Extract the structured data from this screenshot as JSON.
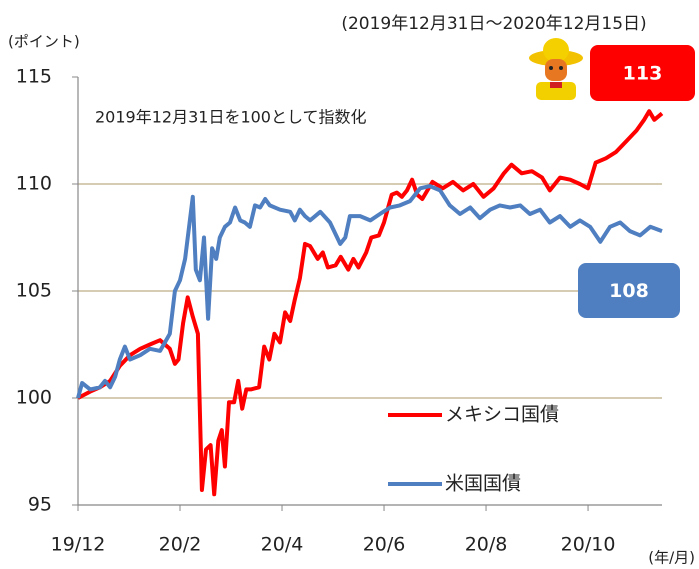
{
  "chart_data": {
    "type": "line",
    "subtitle": "(2019年12月31日～2020年12月15日)",
    "y_label": "(ポイント)",
    "x_label": "(年/月)",
    "annotation": "2019年12月31日を100として指数化",
    "xlim": [
      0,
      11.45
    ],
    "xticks": [
      {
        "value": 0,
        "label": "19/12"
      },
      {
        "value": 2,
        "label": "20/2"
      },
      {
        "value": 4,
        "label": "20/4"
      },
      {
        "value": 6,
        "label": "20/6"
      },
      {
        "value": 8,
        "label": "20/8"
      },
      {
        "value": 10,
        "label": "20/10"
      }
    ],
    "ylim": [
      95,
      115
    ],
    "yticks": [
      95,
      100,
      105,
      110,
      115
    ],
    "grid": true,
    "series": [
      {
        "name": "メキシコ国債",
        "color": "#ff0000",
        "end_label": "113",
        "x": [
          0,
          0.24,
          0.43,
          0.63,
          0.82,
          1.02,
          1.22,
          1.41,
          1.61,
          1.8,
          1.9,
          1.97,
          2.06,
          2.15,
          2.25,
          2.35,
          2.43,
          2.51,
          2.6,
          2.67,
          2.75,
          2.82,
          2.88,
          2.96,
          3.06,
          3.14,
          3.22,
          3.3,
          3.39,
          3.55,
          3.65,
          3.75,
          3.85,
          3.96,
          4.06,
          4.16,
          4.25,
          4.35,
          4.45,
          4.55,
          4.7,
          4.8,
          4.9,
          5.05,
          5.15,
          5.3,
          5.4,
          5.5,
          5.65,
          5.75,
          5.9,
          6.0,
          6.15,
          6.25,
          6.35,
          6.45,
          6.55,
          6.65,
          6.75,
          6.85,
          6.95,
          7.15,
          7.35,
          7.55,
          7.75,
          7.95,
          8.15,
          8.35,
          8.5,
          8.7,
          8.9,
          9.1,
          9.25,
          9.45,
          9.65,
          9.84,
          10.0,
          10.15,
          10.35,
          10.55,
          10.75,
          10.95,
          11.1,
          11.2,
          11.3,
          11.45
        ],
        "values": [
          100,
          100.3,
          100.5,
          100.8,
          101.5,
          102,
          102.3,
          102.5,
          102.7,
          102.3,
          101.6,
          101.8,
          103.5,
          104.7,
          103.8,
          103,
          95.7,
          97.6,
          97.8,
          95.5,
          98,
          98.5,
          96.8,
          99.8,
          99.8,
          100.8,
          99.5,
          100.4,
          100.4,
          100.5,
          102.4,
          101.8,
          103,
          102.6,
          104,
          103.6,
          104.6,
          105.6,
          107.2,
          107.1,
          106.5,
          106.8,
          106.1,
          106.2,
          106.6,
          106,
          106.5,
          106.1,
          106.8,
          107.5,
          107.6,
          108.2,
          109.5,
          109.6,
          109.4,
          109.7,
          110.2,
          109.5,
          109.3,
          109.7,
          110.1,
          109.8,
          110.1,
          109.7,
          110,
          109.4,
          109.8,
          110.5,
          110.9,
          110.5,
          110.6,
          110.3,
          109.7,
          110.3,
          110.2,
          110,
          109.8,
          111,
          111.2,
          111.5,
          112,
          112.5,
          113,
          113.4,
          113,
          113.3
        ]
      },
      {
        "name": "米国国債",
        "color": "#4f7fc0",
        "end_label": "108",
        "x": [
          0,
          0.08,
          0.24,
          0.43,
          0.53,
          0.63,
          0.73,
          0.82,
          0.92,
          1.02,
          1.22,
          1.41,
          1.61,
          1.8,
          1.9,
          2.0,
          2.1,
          2.25,
          2.31,
          2.39,
          2.47,
          2.55,
          2.63,
          2.71,
          2.78,
          2.88,
          2.98,
          3.08,
          3.18,
          3.27,
          3.37,
          3.47,
          3.57,
          3.67,
          3.76,
          3.96,
          4.16,
          4.25,
          4.35,
          4.45,
          4.55,
          4.75,
          4.94,
          5.14,
          5.24,
          5.33,
          5.53,
          5.73,
          5.92,
          6.12,
          6.31,
          6.51,
          6.71,
          6.9,
          7.1,
          7.29,
          7.49,
          7.69,
          7.88,
          8.08,
          8.27,
          8.47,
          8.67,
          8.86,
          9.06,
          9.25,
          9.45,
          9.65,
          9.84,
          10.04,
          10.24,
          10.43,
          10.63,
          10.82,
          11.02,
          11.22,
          11.45
        ],
        "values": [
          100,
          100.7,
          100.4,
          100.5,
          100.8,
          100.5,
          101,
          101.8,
          102.4,
          101.8,
          102,
          102.3,
          102.2,
          103,
          105,
          105.5,
          106.5,
          109.4,
          106,
          105.5,
          107.5,
          103.7,
          107,
          106.5,
          107.5,
          108,
          108.2,
          108.9,
          108.3,
          108.2,
          108,
          109,
          108.9,
          109.3,
          109,
          108.8,
          108.7,
          108.3,
          108.8,
          108.5,
          108.3,
          108.7,
          108.2,
          107.2,
          107.5,
          108.5,
          108.5,
          108.3,
          108.6,
          108.9,
          109,
          109.2,
          109.8,
          109.9,
          109.7,
          109,
          108.6,
          108.9,
          108.4,
          108.8,
          109,
          108.9,
          109,
          108.6,
          108.8,
          108.2,
          108.5,
          108,
          108.3,
          108,
          107.3,
          108,
          108.2,
          107.8,
          107.6,
          108,
          107.8
        ]
      }
    ]
  }
}
